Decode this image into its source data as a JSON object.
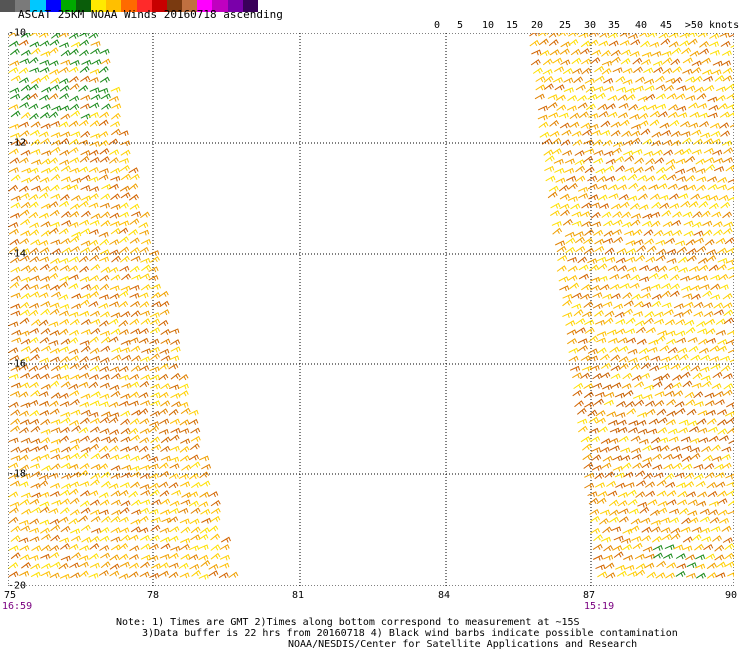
{
  "title": "ASCAT 25KM NOAA Winds 20160718 ascending",
  "legend": {
    "colors": [
      "#555555",
      "#7a7a7a",
      "#00c8ff",
      "#0000ff",
      "#00aa00",
      "#0a5d0a",
      "#ffea00",
      "#ffbf00",
      "#ff6a00",
      "#ff2a2a",
      "#c80000",
      "#7a3a10",
      "#c07040",
      "#ff00ff",
      "#c000c0",
      "#7a00aa",
      "#3a005a"
    ],
    "labels": [
      "0",
      "5",
      "10",
      "15",
      "20",
      "25",
      "30",
      "35",
      "40",
      "45",
      ">50 knots"
    ]
  },
  "map": {
    "lat_labels": [
      "-10",
      "-12",
      "-14",
      "-16",
      "-18",
      "-20"
    ],
    "lon_labels": [
      "75",
      "78",
      "81",
      "84",
      "87",
      "90"
    ],
    "time_left": "16:59",
    "time_right": "15:19"
  },
  "notes": {
    "line1": "Note: 1) Times are GMT 2)Times along bottom correspond to measurement at ~15S",
    "line2": "3)Data buffer is 22 hrs from 20160718 4) Black wind barbs indicate possible contamination",
    "line3": "NOAA/NESDIS/Center for Satellite Applications and Research"
  }
}
